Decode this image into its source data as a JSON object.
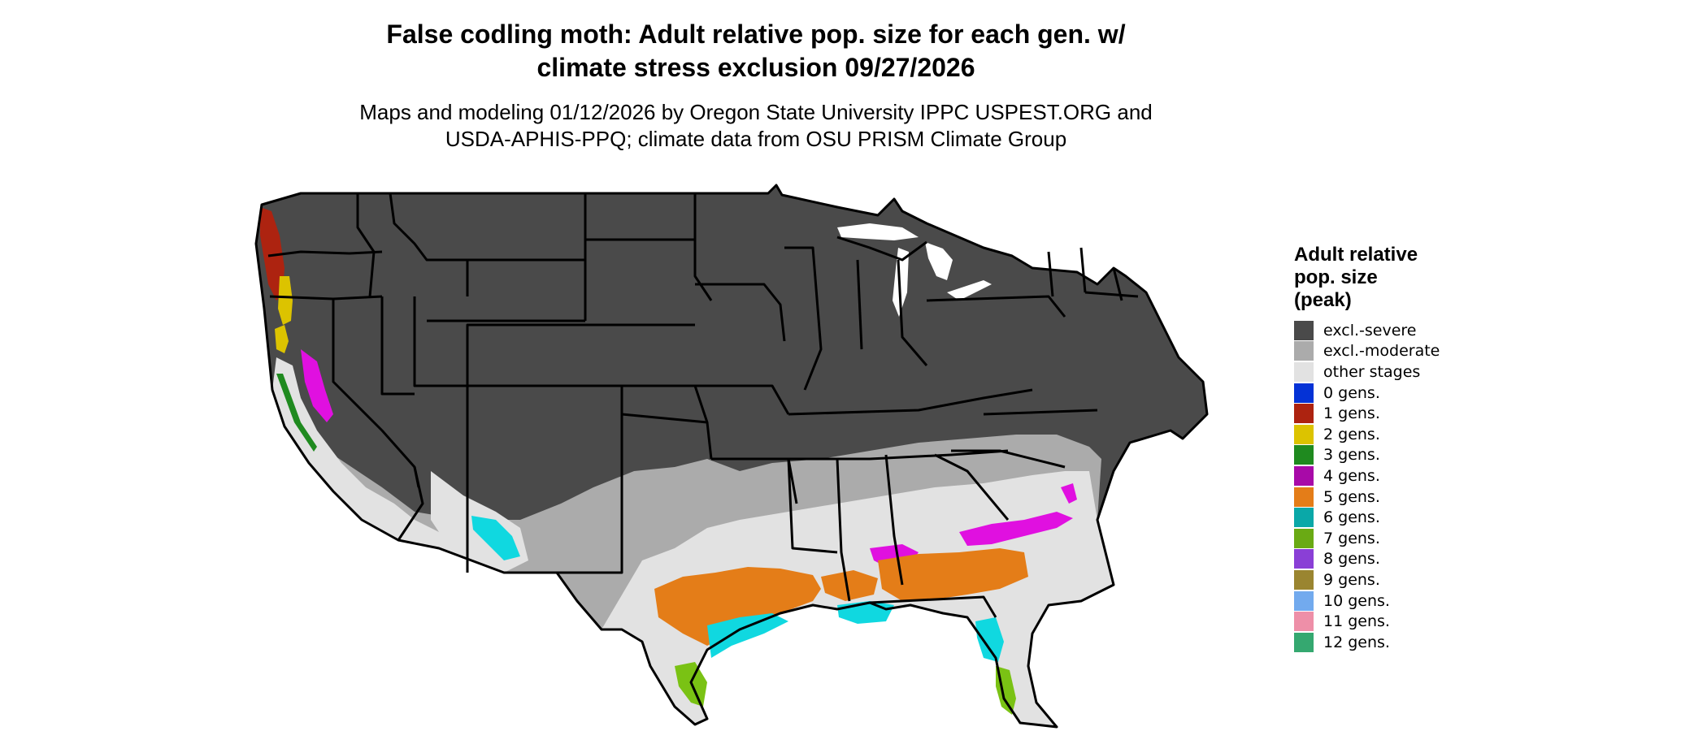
{
  "title": {
    "line1": "False codling moth: Adult relative pop. size for each gen. w/",
    "line2": "climate stress exclusion 09/27/2026"
  },
  "subtitle": {
    "line1": "Maps and modeling 01/12/2026 by Oregon State University IPPC USPEST.ORG and",
    "line2": "USDA-APHIS-PPQ; climate data from OSU PRISM Climate Group"
  },
  "legend": {
    "title_lines": [
      "Adult relative",
      "pop. size",
      "(peak)"
    ],
    "items": [
      {
        "label": "excl.-severe",
        "color": "#4a4a4a"
      },
      {
        "label": "excl.-moderate",
        "color": "#ababab"
      },
      {
        "label": "other stages",
        "color": "#e2e2e2"
      },
      {
        "label": "0 gens.",
        "color": "#0432d6"
      },
      {
        "label": "1 gens.",
        "color": "#ad2310"
      },
      {
        "label": "2 gens.",
        "color": "#dcc300"
      },
      {
        "label": "3 gens.",
        "color": "#1f8a1f"
      },
      {
        "label": "4 gens.",
        "color": "#a80aa8"
      },
      {
        "label": "5 gens.",
        "color": "#e47d18"
      },
      {
        "label": "6 gens.",
        "color": "#0aa8a8"
      },
      {
        "label": "7 gens.",
        "color": "#6aaa14"
      },
      {
        "label": "8 gens.",
        "color": "#8a3fd6"
      },
      {
        "label": "9 gens.",
        "color": "#9a8530"
      },
      {
        "label": "10 gens.",
        "color": "#72aaee"
      },
      {
        "label": "11 gens.",
        "color": "#ee8fa8"
      },
      {
        "label": "12 gens.",
        "color": "#35a870"
      }
    ]
  },
  "map_colors": {
    "severe": "#4a4a4a",
    "moderate": "#ababab",
    "other": "#e2e2e2",
    "gen1": "#ad2310",
    "gen2": "#dcc300",
    "gen3": "#1f8a1f",
    "gen4": "#e010e0",
    "gen5": "#e47d18",
    "gen6": "#10d8e0",
    "gen7": "#7ac214",
    "border": "#000000",
    "lake": "#ffffff"
  }
}
